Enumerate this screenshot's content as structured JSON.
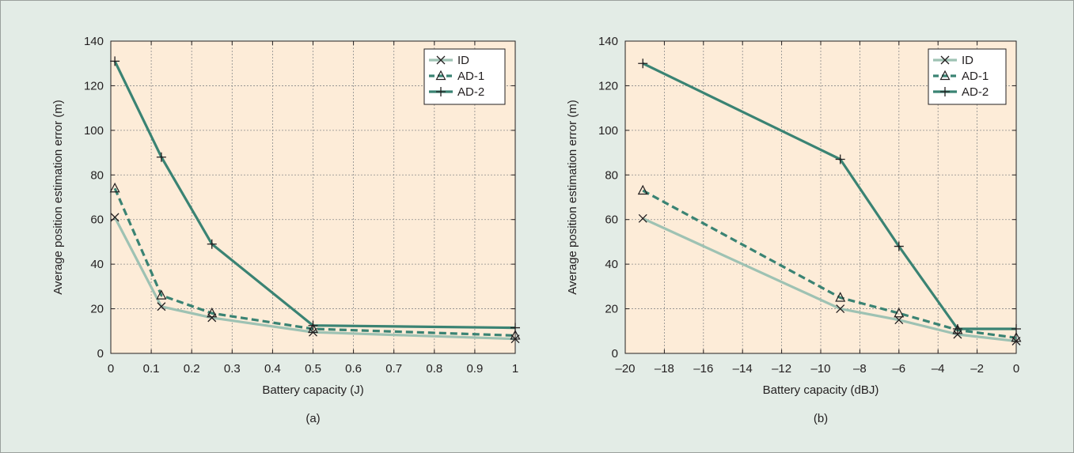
{
  "figure": {
    "background": "#e3ece6",
    "plot_background": "#fdecd8",
    "border": "#9aa09c"
  },
  "colors": {
    "ID": "#9ec2b3",
    "AD-1": "#3a8373",
    "AD-2": "#3a8373",
    "grid": "#8a8a8a",
    "axis": "#231f20"
  },
  "chart_data": [
    {
      "type": "line",
      "panel_label": "(a)",
      "xlabel": "Battery capacity (J)",
      "ylabel": "Average position estimation error (m)",
      "xlim": [
        0,
        1
      ],
      "ylim": [
        0,
        140
      ],
      "xticks": [
        0,
        0.1,
        0.2,
        0.3,
        0.4,
        0.5,
        0.6,
        0.7,
        0.8,
        0.9,
        1
      ],
      "xtick_labels": [
        "0",
        "0.1",
        "0.2",
        "0.3",
        "0.4",
        "0.5",
        "0.6",
        "0.7",
        "0.8",
        "0.9",
        "1"
      ],
      "yticks": [
        0,
        20,
        40,
        60,
        80,
        100,
        120,
        140
      ],
      "ytick_labels": [
        "0",
        "20",
        "40",
        "60",
        "80",
        "100",
        "120",
        "140"
      ],
      "grid": true,
      "legend": "top-right",
      "series": [
        {
          "name": "ID",
          "marker": "x",
          "line": "solid",
          "x": [
            0.01,
            0.125,
            0.25,
            0.5,
            1
          ],
          "y": [
            61,
            21,
            16,
            9.5,
            6.5
          ]
        },
        {
          "name": "AD-1",
          "marker": "triangle",
          "line": "dashed",
          "x": [
            0.01,
            0.125,
            0.25,
            0.5,
            1
          ],
          "y": [
            74,
            26,
            18,
            11,
            8
          ]
        },
        {
          "name": "AD-2",
          "marker": "plus",
          "line": "solid",
          "x": [
            0.01,
            0.125,
            0.25,
            0.5,
            1
          ],
          "y": [
            131,
            88,
            49,
            12.5,
            11.5
          ]
        }
      ]
    },
    {
      "type": "line",
      "panel_label": "(b)",
      "xlabel": "Battery capacity (dBJ)",
      "ylabel": "Average position estimation error (m)",
      "xlim": [
        -20,
        0
      ],
      "ylim": [
        0,
        140
      ],
      "xticks": [
        -20,
        -18,
        -16,
        -14,
        -12,
        -10,
        -8,
        -6,
        -4,
        -2,
        0
      ],
      "xtick_labels": [
        "–20",
        "–18",
        "–16",
        "–14",
        "–12",
        "–10",
        "–8",
        "–6",
        "–4",
        "–2",
        "0"
      ],
      "yticks": [
        0,
        20,
        40,
        60,
        80,
        100,
        120,
        140
      ],
      "ytick_labels": [
        "0",
        "20",
        "40",
        "60",
        "80",
        "100",
        "120",
        "140"
      ],
      "grid": true,
      "legend": "top-right",
      "series": [
        {
          "name": "ID",
          "marker": "x",
          "line": "solid",
          "x": [
            -19.1,
            -9,
            -6,
            -3,
            0
          ],
          "y": [
            60.5,
            20,
            15,
            8.5,
            5.5
          ]
        },
        {
          "name": "AD-1",
          "marker": "triangle",
          "line": "dashed",
          "x": [
            -19.1,
            -9,
            -6,
            -3,
            0
          ],
          "y": [
            73,
            25,
            18,
            10.5,
            7
          ]
        },
        {
          "name": "AD-2",
          "marker": "plus",
          "line": "solid",
          "x": [
            -19.1,
            -9,
            -6,
            -3,
            0
          ],
          "y": [
            130,
            87,
            48,
            11,
            11
          ]
        }
      ]
    }
  ]
}
